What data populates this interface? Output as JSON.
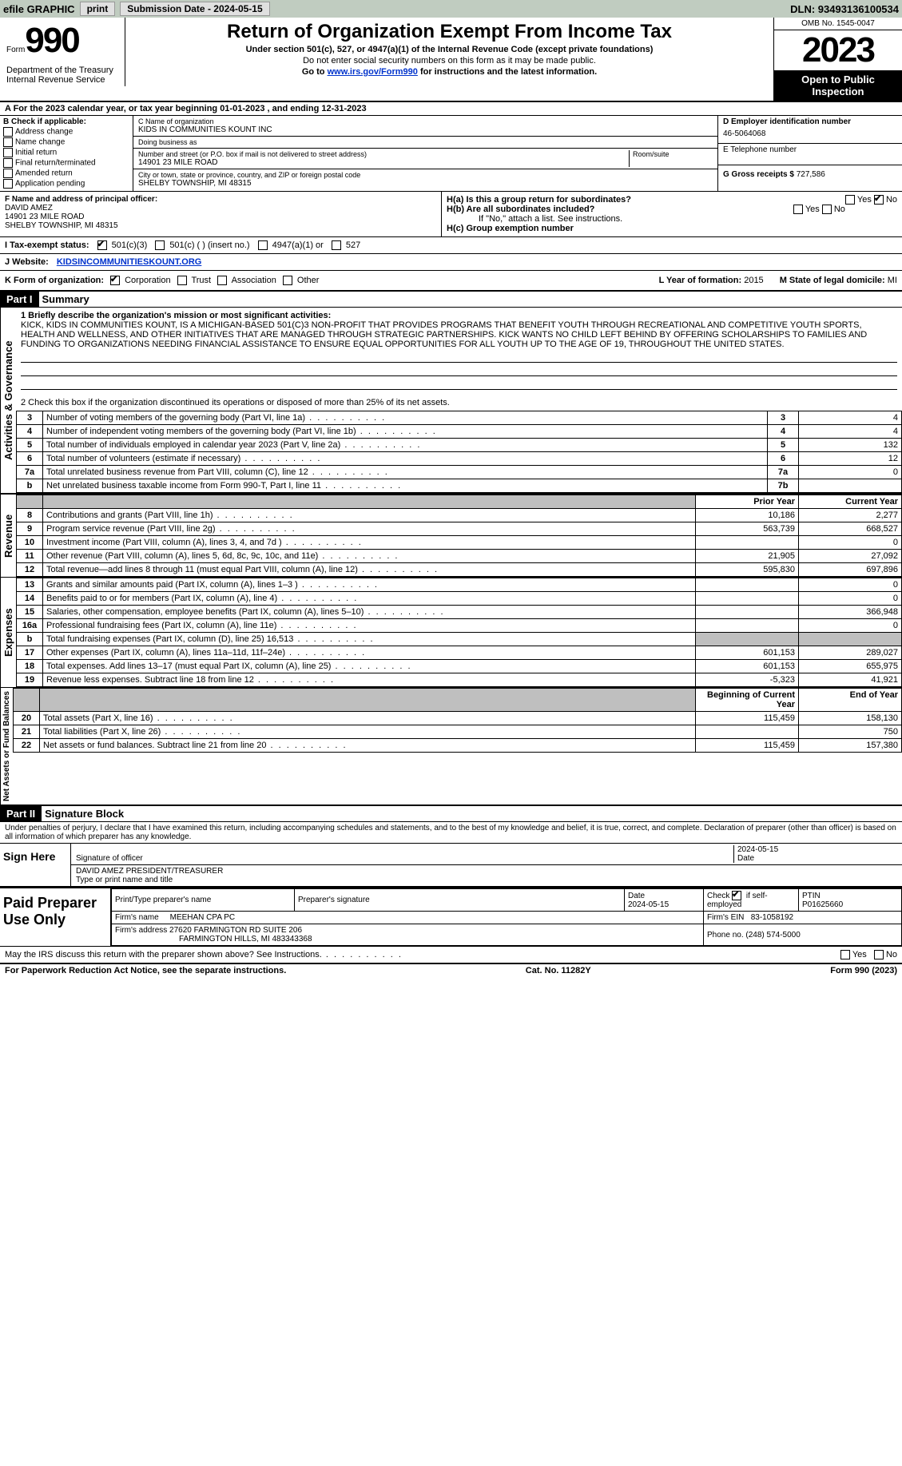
{
  "topbar": {
    "efile": "efile GRAPHIC",
    "print": "print",
    "submission_label": "Submission Date - 2024-05-15",
    "dln": "DLN: 93493136100534"
  },
  "header": {
    "form_word": "Form",
    "form_number": "990",
    "title": "Return of Organization Exempt From Income Tax",
    "subtitle1": "Under section 501(c), 527, or 4947(a)(1) of the Internal Revenue Code (except private foundations)",
    "subtitle2": "Do not enter social security numbers on this form as it may be made public.",
    "subtitle3_prefix": "Go to ",
    "subtitle3_link": "www.irs.gov/Form990",
    "subtitle3_suffix": " for instructions and the latest information.",
    "dept": "Department of the Treasury\nInternal Revenue Service",
    "omb": "OMB No. 1545-0047",
    "year": "2023",
    "open_public": "Open to Public Inspection"
  },
  "row_a": "A For the 2023 calendar year, or tax year beginning 01-01-2023   , and ending 12-31-2023",
  "section_b": {
    "header": "B Check if applicable:",
    "opts": [
      "Address change",
      "Name change",
      "Initial return",
      "Final return/terminated",
      "Amended return",
      "Application pending"
    ]
  },
  "section_c": {
    "name_label": "C Name of organization",
    "name": "KIDS IN COMMUNITIES KOUNT INC",
    "dba_label": "Doing business as",
    "dba": "",
    "street_label": "Number and street (or P.O. box if mail is not delivered to street address)",
    "room_label": "Room/suite",
    "street": "14901 23 MILE ROAD",
    "city_label": "City or town, state or province, country, and ZIP or foreign postal code",
    "city": "SHELBY TOWNSHIP, MI  48315"
  },
  "section_d": {
    "ein_label": "D Employer identification number",
    "ein": "46-5064068",
    "phone_label": "E Telephone number",
    "phone": "",
    "gross_label": "G Gross receipts $",
    "gross": "727,586"
  },
  "section_f": {
    "label": "F Name and address of principal officer:",
    "name": "DAVID AMEZ",
    "street": "14901 23 MILE ROAD",
    "city": "SHELBY TOWNSHIP, MI  48315"
  },
  "section_h": {
    "a_label": "H(a)  Is this a group return for subordinates?",
    "a_yes": "Yes",
    "a_no": "No",
    "b_label": "H(b)  Are all subordinates included?",
    "b_note": "If \"No,\" attach a list. See instructions.",
    "c_label": "H(c)  Group exemption number"
  },
  "row_i": {
    "label": "I   Tax-exempt status:",
    "opt1": "501(c)(3)",
    "opt2": "501(c) (  ) (insert no.)",
    "opt3": "4947(a)(1) or",
    "opt4": "527"
  },
  "row_j": {
    "label": "J   Website:",
    "value": "KIDSINCOMMUNITIESKOUNT.ORG"
  },
  "row_k": {
    "label": "K Form of organization:",
    "opts": [
      "Corporation",
      "Trust",
      "Association",
      "Other"
    ],
    "l_label": "L Year of formation: ",
    "l_val": "2015",
    "m_label": "M State of legal domicile: ",
    "m_val": "MI"
  },
  "part1": {
    "hdr": "Part I",
    "title": "Summary",
    "sidebar1": "Activities & Governance",
    "sidebar2": "Revenue",
    "sidebar3": "Expenses",
    "sidebar4": "Net Assets or Fund Balances",
    "line1_label": "1  Briefly describe the organization's mission or most significant activities:",
    "mission": "KICK, KIDS IN COMMUNITIES KOUNT, IS A MICHIGAN-BASED 501(C)3 NON-PROFIT THAT PROVIDES PROGRAMS THAT BENEFIT YOUTH THROUGH RECREATIONAL AND COMPETITIVE YOUTH SPORTS, HEALTH AND WELLNESS, AND OTHER INITIATIVES THAT ARE MANAGED THROUGH STRATEGIC PARTNERSHIPS. KICK WANTS NO CHILD LEFT BEHIND BY OFFERING SCHOLARSHIPS TO FAMILIES AND FUNDING TO ORGANIZATIONS NEEDING FINANCIAL ASSISTANCE TO ENSURE EQUAL OPPORTUNITIES FOR ALL YOUTH UP TO THE AGE OF 19, THROUGHOUT THE UNITED STATES.",
    "line2": "2   Check this box        if the organization discontinued its operations or disposed of more than 25% of its net assets.",
    "rows_gov": [
      {
        "n": "3",
        "d": "Number of voting members of the governing body (Part VI, line 1a)",
        "box": "3",
        "v": "4"
      },
      {
        "n": "4",
        "d": "Number of independent voting members of the governing body (Part VI, line 1b)",
        "box": "4",
        "v": "4"
      },
      {
        "n": "5",
        "d": "Total number of individuals employed in calendar year 2023 (Part V, line 2a)",
        "box": "5",
        "v": "132"
      },
      {
        "n": "6",
        "d": "Total number of volunteers (estimate if necessary)",
        "box": "6",
        "v": "12"
      },
      {
        "n": "7a",
        "d": "Total unrelated business revenue from Part VIII, column (C), line 12",
        "box": "7a",
        "v": "0"
      },
      {
        "n": "b",
        "d": "Net unrelated business taxable income from Form 990-T, Part I, line 11",
        "box": "7b",
        "v": ""
      }
    ],
    "col_prior": "Prior Year",
    "col_current": "Current Year",
    "rows_rev": [
      {
        "n": "8",
        "d": "Contributions and grants (Part VIII, line 1h)",
        "p": "10,186",
        "c": "2,277"
      },
      {
        "n": "9",
        "d": "Program service revenue (Part VIII, line 2g)",
        "p": "563,739",
        "c": "668,527"
      },
      {
        "n": "10",
        "d": "Investment income (Part VIII, column (A), lines 3, 4, and 7d )",
        "p": "",
        "c": "0"
      },
      {
        "n": "11",
        "d": "Other revenue (Part VIII, column (A), lines 5, 6d, 8c, 9c, 10c, and 11e)",
        "p": "21,905",
        "c": "27,092"
      },
      {
        "n": "12",
        "d": "Total revenue—add lines 8 through 11 (must equal Part VIII, column (A), line 12)",
        "p": "595,830",
        "c": "697,896"
      }
    ],
    "rows_exp": [
      {
        "n": "13",
        "d": "Grants and similar amounts paid (Part IX, column (A), lines 1–3 )",
        "p": "",
        "c": "0"
      },
      {
        "n": "14",
        "d": "Benefits paid to or for members (Part IX, column (A), line 4)",
        "p": "",
        "c": "0"
      },
      {
        "n": "15",
        "d": "Salaries, other compensation, employee benefits (Part IX, column (A), lines 5–10)",
        "p": "",
        "c": "366,948"
      },
      {
        "n": "16a",
        "d": "Professional fundraising fees (Part IX, column (A), line 11e)",
        "p": "",
        "c": "0"
      },
      {
        "n": "b",
        "d": "Total fundraising expenses (Part IX, column (D), line 25) 16,513",
        "p": "GRAY",
        "c": "GRAY"
      },
      {
        "n": "17",
        "d": "Other expenses (Part IX, column (A), lines 11a–11d, 11f–24e)",
        "p": "601,153",
        "c": "289,027"
      },
      {
        "n": "18",
        "d": "Total expenses. Add lines 13–17 (must equal Part IX, column (A), line 25)",
        "p": "601,153",
        "c": "655,975"
      },
      {
        "n": "19",
        "d": "Revenue less expenses. Subtract line 18 from line 12",
        "p": "-5,323",
        "c": "41,921"
      }
    ],
    "col_begin": "Beginning of Current Year",
    "col_end": "End of Year",
    "rows_net": [
      {
        "n": "20",
        "d": "Total assets (Part X, line 16)",
        "p": "115,459",
        "c": "158,130"
      },
      {
        "n": "21",
        "d": "Total liabilities (Part X, line 26)",
        "p": "",
        "c": "750"
      },
      {
        "n": "22",
        "d": "Net assets or fund balances. Subtract line 21 from line 20",
        "p": "115,459",
        "c": "157,380"
      }
    ]
  },
  "part2": {
    "hdr": "Part II",
    "title": "Signature Block",
    "decl": "Under penalties of perjury, I declare that I have examined this return, including accompanying schedules and statements, and to the best of my knowledge and belief, it is true, correct, and complete. Declaration of preparer (other than officer) is based on all information of which preparer has any knowledge.",
    "sign_here": "Sign Here",
    "sig_officer_label": "Signature of officer",
    "sig_date": "2024-05-15",
    "date_label": "Date",
    "officer_name": "DAVID AMEZ  PRESIDENT/TREASURER",
    "type_label": "Type or print name and title",
    "paid": "Paid Preparer Use Only",
    "prep_name_label": "Print/Type preparer's name",
    "prep_sig_label": "Preparer's signature",
    "prep_date_label": "Date",
    "prep_date": "2024-05-15",
    "check_self": "Check        if self-employed",
    "ptin_label": "PTIN",
    "ptin": "P01625660",
    "firm_name_label": "Firm's name",
    "firm_name": "MEEHAN CPA PC",
    "firm_ein_label": "Firm's EIN",
    "firm_ein": "83-1058192",
    "firm_addr_label": "Firm's address",
    "firm_addr1": "27620 FARMINGTON RD SUITE 206",
    "firm_addr2": "FARMINGTON HILLS, MI  483343368",
    "phone_label": "Phone no.",
    "phone": "(248) 574-5000",
    "may_irs": "May the IRS discuss this return with the preparer shown above? See Instructions.",
    "yes": "Yes",
    "no": "No"
  },
  "footer": {
    "left": "For Paperwork Reduction Act Notice, see the separate instructions.",
    "mid": "Cat. No. 11282Y",
    "right": "Form 990 (2023)"
  }
}
